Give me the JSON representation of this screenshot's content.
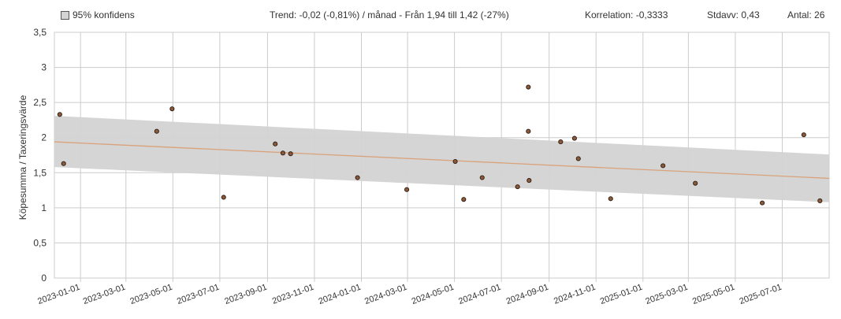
{
  "legend": {
    "ci_label": "95% konfidens",
    "ci_color": "#d3d3d3"
  },
  "stats": {
    "trend": "Trend: -0,02 (-0,81%) / månad  -  Från 1,94 till 1,42 (-27%)",
    "korrelation": "Korrelation: -0,3333",
    "stdavv": "Stdavv: 0,43",
    "antal": "Antal: 26"
  },
  "chart_data": {
    "type": "scatter",
    "title": "",
    "xlabel": "",
    "ylabel": "Köpesumma / Taxeringsvärde",
    "ylim": [
      0,
      3.5
    ],
    "xlim": [
      "2022-11-28",
      "2025-08-31"
    ],
    "yticks": [
      0,
      0.5,
      1,
      1.5,
      2,
      2.5,
      3,
      3.5
    ],
    "ytick_labels": [
      "0",
      "0,5",
      "1",
      "1,5",
      "2",
      "2,5",
      "3",
      "3,5"
    ],
    "xtick_labels": [
      "2023-01-01",
      "2023-03-01",
      "2023-05-01",
      "2023-07-01",
      "2023-09-01",
      "2023-11-01",
      "2024-01-01",
      "2024-03-01",
      "2024-05-01",
      "2024-07-01",
      "2024-09-01",
      "2024-11-01",
      "2025-01-01",
      "2025-03-01",
      "2025-05-01",
      "2025-07-01"
    ],
    "grid": true,
    "points": [
      {
        "x": "2022-12-05",
        "y": 2.33
      },
      {
        "x": "2022-12-10",
        "y": 1.63
      },
      {
        "x": "2023-04-10",
        "y": 2.09
      },
      {
        "x": "2023-04-30",
        "y": 2.41
      },
      {
        "x": "2023-07-06",
        "y": 1.15
      },
      {
        "x": "2023-09-11",
        "y": 1.91
      },
      {
        "x": "2023-09-21",
        "y": 1.78
      },
      {
        "x": "2023-10-01",
        "y": 1.77
      },
      {
        "x": "2023-12-27",
        "y": 1.43
      },
      {
        "x": "2024-02-29",
        "y": 1.26
      },
      {
        "x": "2024-05-02",
        "y": 1.66
      },
      {
        "x": "2024-05-13",
        "y": 1.12
      },
      {
        "x": "2024-06-06",
        "y": 1.43
      },
      {
        "x": "2024-07-22",
        "y": 1.3
      },
      {
        "x": "2024-08-05",
        "y": 2.72
      },
      {
        "x": "2024-08-05",
        "y": 2.09
      },
      {
        "x": "2024-08-06",
        "y": 1.39
      },
      {
        "x": "2024-09-16",
        "y": 1.94
      },
      {
        "x": "2024-10-04",
        "y": 1.99
      },
      {
        "x": "2024-10-09",
        "y": 1.7
      },
      {
        "x": "2024-11-20",
        "y": 1.13
      },
      {
        "x": "2025-01-27",
        "y": 1.6
      },
      {
        "x": "2025-03-10",
        "y": 1.35
      },
      {
        "x": "2025-06-05",
        "y": 1.07
      },
      {
        "x": "2025-07-29",
        "y": 2.04
      },
      {
        "x": "2025-08-19",
        "y": 1.1
      }
    ],
    "trend_line": {
      "from": [
        "2022-11-28",
        1.94
      ],
      "to": [
        "2025-08-31",
        1.42
      ],
      "color": "#d9a27a"
    },
    "confidence_band": {
      "upper": [
        [
          "2022-11-28",
          2.31
        ],
        [
          "2025-08-31",
          1.76
        ]
      ],
      "lower": [
        [
          "2022-11-28",
          1.58
        ],
        [
          "2025-08-31",
          1.08
        ]
      ],
      "color": "#d3d3d3"
    },
    "point_color": "#8b5a3c"
  }
}
